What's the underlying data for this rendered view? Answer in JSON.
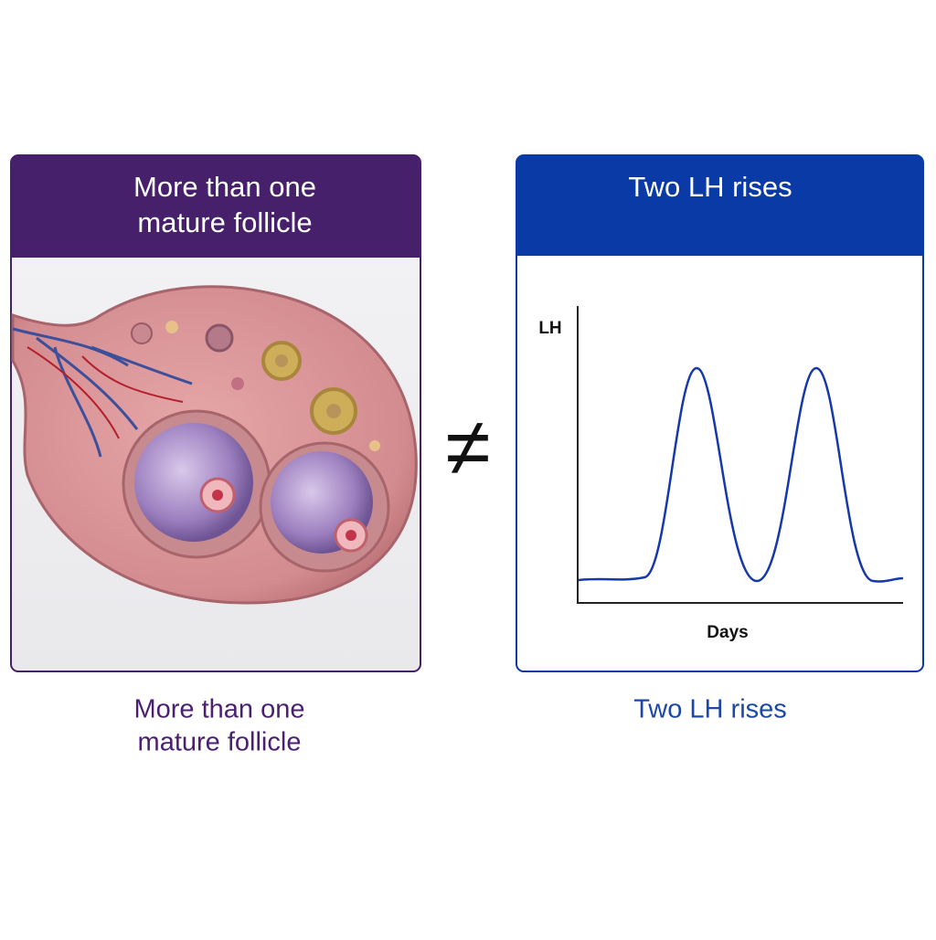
{
  "left_panel": {
    "header": [
      "More than one",
      "mature follicle"
    ],
    "caption": [
      "More than one",
      "mature follicle"
    ]
  },
  "relation": "≠",
  "right_panel": {
    "header": "Two LH rises",
    "y_label": "LH",
    "x_label": "Days",
    "caption": "Two LH rises"
  }
}
